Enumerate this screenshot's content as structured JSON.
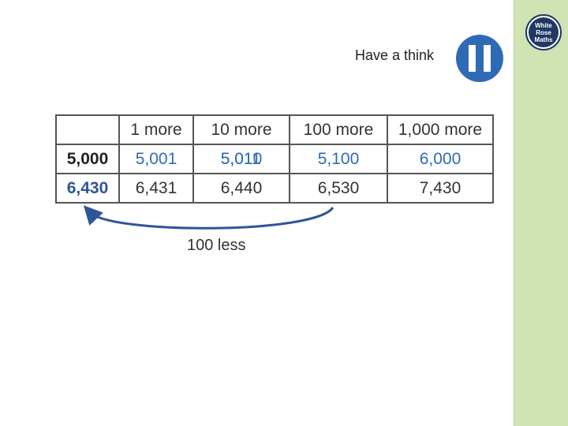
{
  "header": {
    "think_label": "Have a think"
  },
  "logo": {
    "line1": "White",
    "line2": "Rose",
    "line3": "Maths"
  },
  "table": {
    "headers": [
      "",
      "1 more",
      "10 more",
      "100 more",
      "1,000 more"
    ],
    "rows": [
      {
        "start": "5,000",
        "one_more": "5,001",
        "ten_more": "5,010",
        "ten_more_overlap": "5,011",
        "hundred_more": "5,100",
        "thousand_more": "6,000"
      },
      {
        "start": "6,430",
        "one_more": "6,431",
        "ten_more": "6,440",
        "hundred_more": "6,530",
        "thousand_more": "7,430"
      }
    ]
  },
  "annotation": {
    "label": "100 less",
    "arrow_color": "#2f5597"
  },
  "colors": {
    "accent": "#2f6bb5",
    "side_strip": "#cfe3b3"
  },
  "icons": {
    "pause": "pause-icon",
    "logo": "white-rose-maths-logo"
  }
}
